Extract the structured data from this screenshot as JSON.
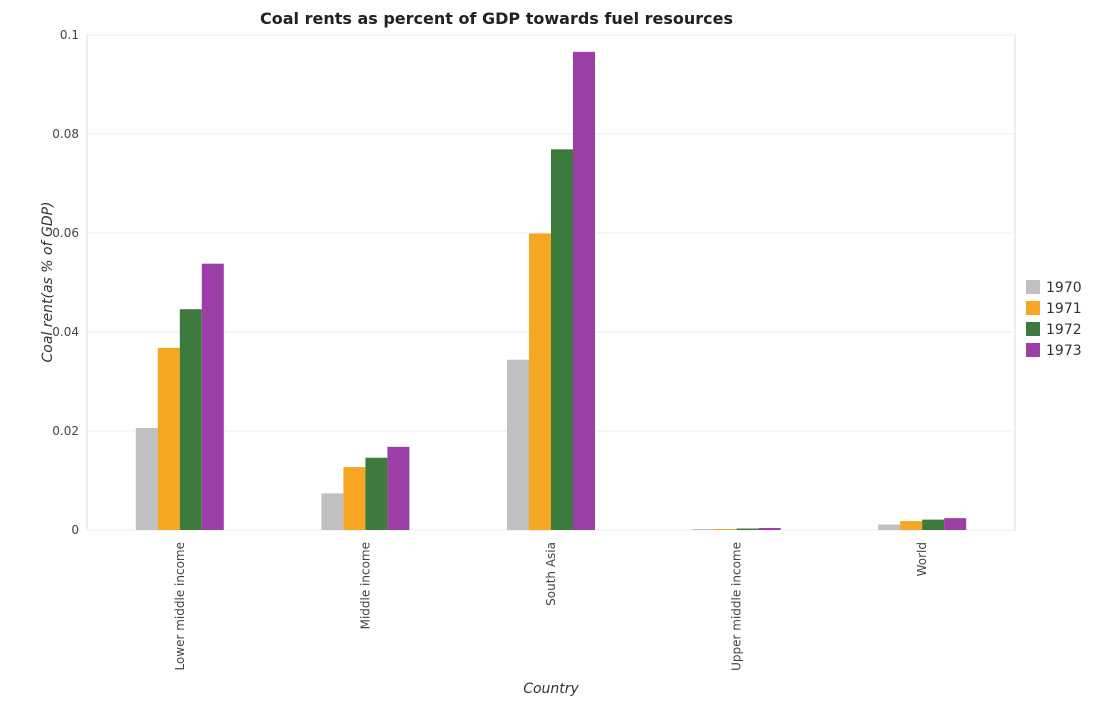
{
  "chart_data": {
    "type": "bar",
    "title": "Coal rents as percent of GDP towards fuel resources",
    "xlabel": "Country",
    "ylabel": "Coal rent(as % of GDP)",
    "categories": [
      "Lower middle income",
      "Middle income",
      "South Asia",
      "Upper middle income",
      "World"
    ],
    "ylim": [
      0,
      0.1
    ],
    "yticks": [
      "0",
      "0.02",
      "0.04",
      "0.06",
      "0.08",
      "0.1"
    ],
    "ytick_values": [
      0,
      0.02,
      0.04,
      0.06,
      0.08,
      0.1
    ],
    "grid": true,
    "legend_position": "right",
    "series": [
      {
        "name": "1970",
        "color": "#c0c0c0",
        "values": [
          0.0206,
          0.0074,
          0.0344,
          0.0002,
          0.0011
        ]
      },
      {
        "name": "1971",
        "color": "#f5a623",
        "values": [
          0.0368,
          0.0127,
          0.0599,
          0.0002,
          0.0018
        ]
      },
      {
        "name": "1972",
        "color": "#3d7a3d",
        "values": [
          0.0446,
          0.0146,
          0.0769,
          0.0003,
          0.0021
        ]
      },
      {
        "name": "1973",
        "color": "#9b3fa6",
        "values": [
          0.0538,
          0.0168,
          0.0966,
          0.0004,
          0.0024
        ]
      }
    ]
  }
}
